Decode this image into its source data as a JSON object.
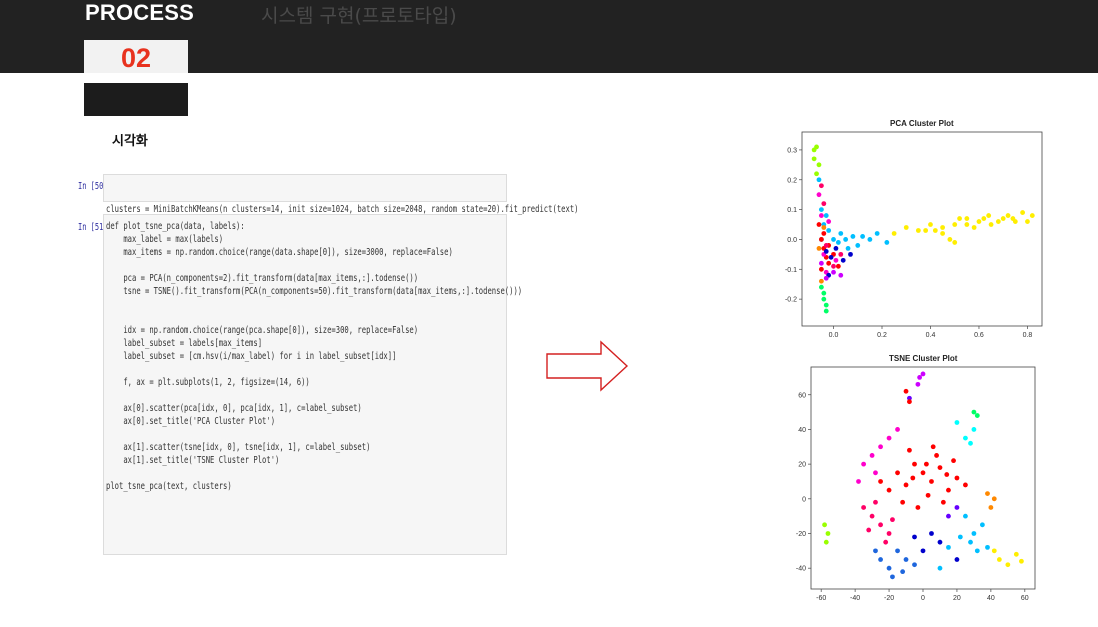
{
  "header": {
    "process_label": "PROCESS",
    "subtitle": "시스템 구현(프로토타입)",
    "step_number": "02"
  },
  "section": {
    "caption": "시각화"
  },
  "cells": [
    {
      "prompt": "In [50]:",
      "lines": [
        "clusters = MiniBatchKMeans(n_clusters=14, init_size=1024, batch_size=2048, random_state=20).fit_predict(text)"
      ]
    },
    {
      "prompt": "In [51]:",
      "lines": [
        "def plot_tsne_pca(data, labels):",
        "    max_label = max(labels)",
        "    max_items = np.random.choice(range(data.shape[0]), size=3000, replace=False)",
        "",
        "    pca = PCA(n_components=2).fit_transform(data[max_items,:].todense())",
        "    tsne = TSNE().fit_transform(PCA(n_components=50).fit_transform(data[max_items,:].todense()))",
        "",
        "",
        "    idx = np.random.choice(range(pca.shape[0]), size=300, replace=False)",
        "    label_subset = labels[max_items]",
        "    label_subset = [cm.hsv(i/max_label) for i in label_subset[idx]]",
        "",
        "    f, ax = plt.subplots(1, 2, figsize=(14, 6))",
        "",
        "    ax[0].scatter(pca[idx, 0], pca[idx, 1], c=label_subset)",
        "    ax[0].set_title('PCA Cluster Plot')",
        "",
        "    ax[1].scatter(tsne[idx, 0], tsne[idx, 1], c=label_subset)",
        "    ax[1].set_title('TSNE Cluster Plot')",
        "",
        "plot_tsne_pca(text, clusters)"
      ]
    }
  ],
  "colors": {
    "header_bg": "#222222",
    "step_number": "#e8321e",
    "arrow_stroke": "#d42020",
    "cluster_palette": [
      "#ff0000",
      "#ff0066",
      "#ff00cc",
      "#cc00ff",
      "#6600ff",
      "#0000cc",
      "#0044cc",
      "#1e66dd",
      "#00bfff",
      "#00ffff",
      "#00ff66",
      "#99ff00",
      "#ffee00",
      "#ff8800"
    ]
  },
  "icons": {
    "arrow": "right-arrow-icon"
  },
  "chart_data": [
    {
      "type": "scatter",
      "title": "PCA Cluster Plot",
      "x_ticks": [
        "0.0",
        "0.2",
        "0.4",
        "0.6",
        "0.8"
      ],
      "y_ticks": [
        "0.3",
        "0.2",
        "0.1",
        "0.0",
        "-0.1",
        "-0.2"
      ],
      "xlim": [
        -0.13,
        0.86
      ],
      "ylim": [
        -0.29,
        0.36
      ],
      "groups": [
        {
          "color": "#ffee00",
          "points": [
            [
              0.25,
              0.02
            ],
            [
              0.3,
              0.04
            ],
            [
              0.35,
              0.03
            ],
            [
              0.4,
              0.05
            ],
            [
              0.45,
              0.04
            ],
            [
              0.5,
              0.05
            ],
            [
              0.52,
              0.07
            ],
            [
              0.55,
              0.05
            ],
            [
              0.58,
              0.04
            ],
            [
              0.6,
              0.06
            ],
            [
              0.62,
              0.07
            ],
            [
              0.65,
              0.05
            ],
            [
              0.68,
              0.06
            ],
            [
              0.7,
              0.07
            ],
            [
              0.72,
              0.08
            ],
            [
              0.75,
              0.06
            ],
            [
              0.78,
              0.09
            ],
            [
              0.8,
              0.06
            ],
            [
              0.82,
              0.08
            ],
            [
              0.45,
              0.02
            ],
            [
              0.48,
              0.0
            ],
            [
              0.38,
              0.03
            ],
            [
              0.55,
              0.07
            ],
            [
              0.64,
              0.08
            ],
            [
              0.74,
              0.07
            ],
            [
              0.42,
              0.03
            ],
            [
              0.5,
              -0.01
            ]
          ]
        },
        {
          "color": "#00bfff",
          "points": [
            [
              -0.06,
              0.2
            ],
            [
              -0.05,
              0.1
            ],
            [
              -0.04,
              0.05
            ],
            [
              -0.02,
              0.03
            ],
            [
              0.0,
              0.0
            ],
            [
              0.02,
              -0.01
            ],
            [
              0.05,
              0.0
            ],
            [
              0.08,
              0.01
            ],
            [
              0.1,
              -0.02
            ],
            [
              0.15,
              0.0
            ],
            [
              0.18,
              0.02
            ],
            [
              0.12,
              0.01
            ],
            [
              0.06,
              -0.03
            ],
            [
              0.22,
              -0.01
            ],
            [
              -0.03,
              0.08
            ],
            [
              -0.05,
              0.0
            ],
            [
              0.03,
              0.02
            ]
          ]
        },
        {
          "color": "#ff0000",
          "points": [
            [
              -0.06,
              0.05
            ],
            [
              -0.05,
              0.0
            ],
            [
              -0.04,
              -0.03
            ],
            [
              -0.03,
              -0.06
            ],
            [
              -0.02,
              -0.08
            ],
            [
              0.0,
              -0.05
            ],
            [
              0.02,
              -0.09
            ],
            [
              -0.05,
              -0.1
            ],
            [
              -0.04,
              0.02
            ],
            [
              -0.02,
              -0.02
            ]
          ]
        },
        {
          "color": "#ff00cc",
          "points": [
            [
              -0.06,
              0.15
            ],
            [
              -0.05,
              0.08
            ],
            [
              -0.04,
              -0.05
            ],
            [
              -0.03,
              -0.11
            ],
            [
              0.01,
              -0.07
            ],
            [
              -0.02,
              0.06
            ]
          ]
        },
        {
          "color": "#ff0066",
          "points": [
            [
              -0.05,
              0.18
            ],
            [
              -0.04,
              0.12
            ],
            [
              -0.03,
              -0.02
            ],
            [
              0.0,
              -0.09
            ],
            [
              0.03,
              -0.05
            ]
          ]
        },
        {
          "color": "#0000cc",
          "points": [
            [
              -0.03,
              -0.04
            ],
            [
              -0.01,
              -0.06
            ],
            [
              0.01,
              -0.03
            ],
            [
              0.04,
              -0.07
            ],
            [
              0.07,
              -0.05
            ],
            [
              -0.02,
              -0.12
            ]
          ]
        },
        {
          "color": "#cc00ff",
          "points": [
            [
              -0.05,
              -0.08
            ],
            [
              -0.03,
              -0.13
            ],
            [
              0.0,
              -0.11
            ],
            [
              0.03,
              -0.12
            ]
          ]
        },
        {
          "color": "#00ff66",
          "points": [
            [
              -0.05,
              -0.16
            ],
            [
              -0.04,
              -0.2
            ],
            [
              -0.03,
              -0.24
            ],
            [
              -0.04,
              -0.18
            ],
            [
              -0.03,
              -0.22
            ]
          ]
        },
        {
          "color": "#99ff00",
          "points": [
            [
              -0.07,
              0.31
            ],
            [
              -0.08,
              0.27
            ],
            [
              -0.07,
              0.22
            ],
            [
              -0.06,
              0.25
            ],
            [
              -0.08,
              0.3
            ]
          ]
        },
        {
          "color": "#ff8800",
          "points": [
            [
              -0.06,
              -0.03
            ],
            [
              -0.05,
              -0.14
            ],
            [
              -0.04,
              0.04
            ]
          ]
        }
      ]
    },
    {
      "type": "scatter",
      "title": "TSNE Cluster Plot",
      "x_ticks": [
        "-60",
        "-40",
        "-20",
        "0",
        "20",
        "40",
        "60"
      ],
      "y_ticks": [
        "60",
        "40",
        "20",
        "0",
        "-20",
        "-40"
      ],
      "xlim": [
        -66,
        66
      ],
      "ylim": [
        -52,
        76
      ],
      "groups": [
        {
          "color": "#ff0000",
          "points": [
            [
              0,
              15
            ],
            [
              5,
              10
            ],
            [
              -5,
              20
            ],
            [
              10,
              18
            ],
            [
              -10,
              8
            ],
            [
              15,
              5
            ],
            [
              -15,
              15
            ],
            [
              8,
              25
            ],
            [
              -8,
              28
            ],
            [
              20,
              12
            ],
            [
              -20,
              5
            ],
            [
              3,
              2
            ],
            [
              12,
              -2
            ],
            [
              -3,
              -5
            ],
            [
              18,
              22
            ],
            [
              -12,
              -2
            ],
            [
              25,
              8
            ],
            [
              -25,
              10
            ],
            [
              6,
              30
            ],
            [
              -6,
              12
            ],
            [
              14,
              14
            ],
            [
              2,
              20
            ]
          ]
        },
        {
          "color": "#ff0066",
          "points": [
            [
              -30,
              -10
            ],
            [
              -35,
              -5
            ],
            [
              -25,
              -15
            ],
            [
              -20,
              -20
            ],
            [
              -28,
              -2
            ],
            [
              -18,
              -12
            ],
            [
              -32,
              -18
            ],
            [
              -22,
              -25
            ]
          ]
        },
        {
          "color": "#ff00cc",
          "points": [
            [
              -35,
              20
            ],
            [
              -30,
              25
            ],
            [
              -25,
              30
            ],
            [
              -28,
              15
            ],
            [
              -20,
              35
            ],
            [
              -15,
              40
            ],
            [
              -38,
              10
            ]
          ]
        },
        {
          "color": "#1e66dd",
          "points": [
            [
              -25,
              -35
            ],
            [
              -20,
              -40
            ],
            [
              -15,
              -30
            ],
            [
              -10,
              -35
            ],
            [
              -18,
              -45
            ],
            [
              -28,
              -30
            ],
            [
              -12,
              -42
            ],
            [
              -5,
              -38
            ]
          ]
        },
        {
          "color": "#00bfff",
          "points": [
            [
              30,
              -20
            ],
            [
              35,
              -15
            ],
            [
              28,
              -25
            ],
            [
              25,
              -10
            ],
            [
              38,
              -28
            ],
            [
              32,
              -30
            ],
            [
              22,
              -22
            ],
            [
              10,
              -40
            ],
            [
              15,
              -28
            ]
          ]
        },
        {
          "color": "#00ffff",
          "points": [
            [
              25,
              35
            ],
            [
              30,
              40
            ],
            [
              28,
              32
            ],
            [
              20,
              44
            ]
          ]
        },
        {
          "color": "#00ff66",
          "points": [
            [
              30,
              50
            ],
            [
              32,
              48
            ]
          ]
        },
        {
          "color": "#ffee00",
          "points": [
            [
              45,
              -35
            ],
            [
              50,
              -38
            ],
            [
              55,
              -32
            ],
            [
              42,
              -30
            ],
            [
              58,
              -36
            ]
          ]
        },
        {
          "color": "#ff8800",
          "points": [
            [
              40,
              -5
            ],
            [
              42,
              0
            ],
            [
              38,
              3
            ]
          ]
        },
        {
          "color": "#99ff00",
          "points": [
            [
              -58,
              -15
            ],
            [
              -56,
              -20
            ],
            [
              -57,
              -25
            ]
          ]
        },
        {
          "color": "#cc00ff",
          "points": [
            [
              -2,
              70
            ],
            [
              0,
              72
            ],
            [
              -3,
              66
            ]
          ]
        },
        {
          "color": "#0000cc",
          "points": [
            [
              5,
              -20
            ],
            [
              10,
              -25
            ],
            [
              0,
              -30
            ],
            [
              -5,
              -22
            ],
            [
              20,
              -35
            ]
          ]
        },
        {
          "color": "#6600ff",
          "points": [
            [
              15,
              -10
            ],
            [
              20,
              -5
            ],
            [
              -8,
              58
            ]
          ]
        },
        {
          "color": "#ff0000",
          "points": [
            [
              -10,
              62
            ],
            [
              -8,
              56
            ]
          ]
        }
      ]
    }
  ]
}
